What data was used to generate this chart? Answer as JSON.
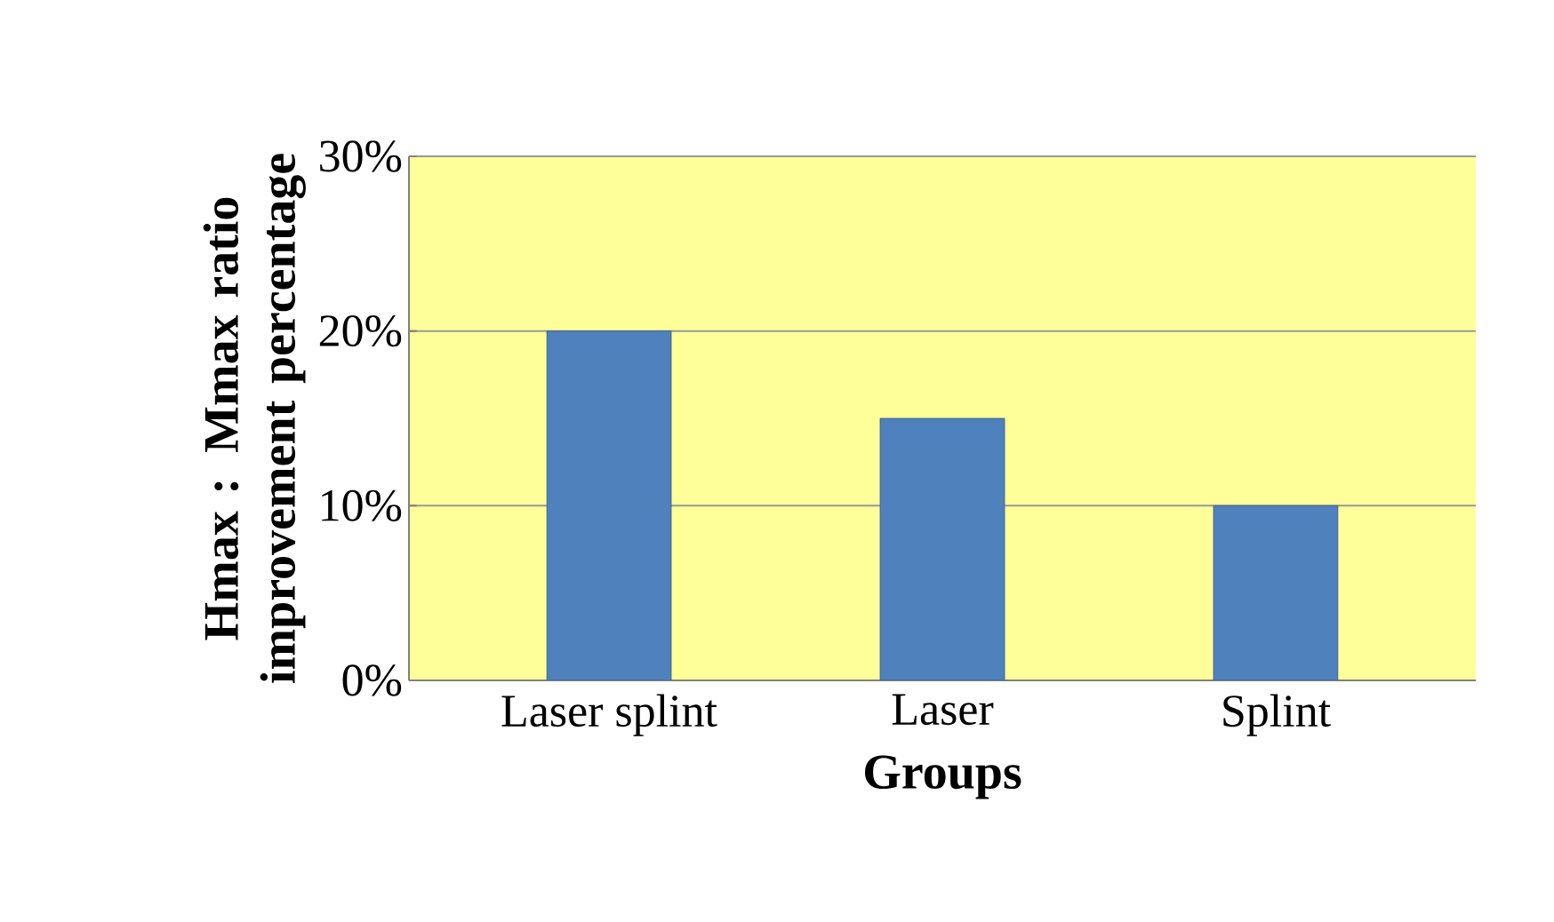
{
  "chart_data": {
    "type": "bar",
    "xlabel": "Groups",
    "ylabel": "Hmax : Mmax ratio improvement percentage",
    "categories": [
      "Laser splint",
      "Laser",
      "Splint"
    ],
    "values": [
      20,
      15,
      10
    ],
    "color": "#4f81bd",
    "ylim": [
      0,
      30
    ],
    "yticks": [
      {
        "value": 0,
        "label": "0%"
      },
      {
        "value": 10,
        "label": "10%"
      },
      {
        "value": 20,
        "label": "20%"
      },
      {
        "value": 30,
        "label": "30%"
      }
    ],
    "grid": "y"
  }
}
